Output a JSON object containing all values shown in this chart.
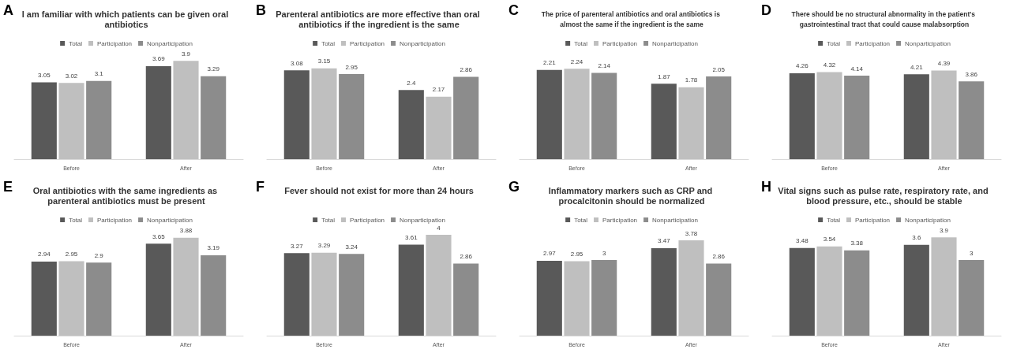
{
  "chart_data": [
    {
      "type": "bar",
      "annotations": [
        "A"
      ],
      "title": "I am familiar with which patients can be given oral antibiotics",
      "categories": [
        "Before",
        "After"
      ],
      "series": [
        {
          "name": "Total",
          "color": "#595959",
          "values": [
            3.05,
            3.69
          ]
        },
        {
          "name": "Participation",
          "color": "#bfbfbf",
          "values": [
            3.02,
            3.9
          ]
        },
        {
          "name": "Nonparticipation",
          "color": "#8c8c8c",
          "values": [
            3.1,
            3.29
          ]
        }
      ],
      "data_labels": true,
      "legend": "top",
      "grid": false
    },
    {
      "type": "bar",
      "annotations": [
        "B"
      ],
      "title": "Parenteral antibiotics are more effective than oral antibiotics if the ingredient is the same",
      "categories": [
        "Before",
        "After"
      ],
      "series": [
        {
          "name": "Total",
          "color": "#595959",
          "values": [
            3.08,
            2.4
          ]
        },
        {
          "name": "Participation",
          "color": "#bfbfbf",
          "values": [
            3.15,
            2.17
          ]
        },
        {
          "name": "Nonparticipation",
          "color": "#8c8c8c",
          "values": [
            2.95,
            2.86
          ]
        }
      ],
      "data_labels": true,
      "legend": "top",
      "grid": false
    },
    {
      "type": "bar",
      "annotations": [
        "C"
      ],
      "title": "The price of parenteral antibiotics and oral antibiotics is almost the same if the ingredient is the same",
      "categories": [
        "Before",
        "After"
      ],
      "series": [
        {
          "name": "Total",
          "color": "#595959",
          "values": [
            2.21,
            1.87
          ]
        },
        {
          "name": "Participation",
          "color": "#bfbfbf",
          "values": [
            2.24,
            1.78
          ]
        },
        {
          "name": "Nonparticipation",
          "color": "#8c8c8c",
          "values": [
            2.14,
            2.05
          ]
        }
      ],
      "data_labels": true,
      "legend": "top",
      "grid": false
    },
    {
      "type": "bar",
      "annotations": [
        "D"
      ],
      "title": "There should be no structural abnormality in the patient's gastrointestinal tract that could cause malabsorption",
      "categories": [
        "Before",
        "After"
      ],
      "series": [
        {
          "name": "Total",
          "color": "#595959",
          "values": [
            4.26,
            4.21
          ]
        },
        {
          "name": "Participation",
          "color": "#bfbfbf",
          "values": [
            4.32,
            4.39
          ]
        },
        {
          "name": "Nonparticipation",
          "color": "#8c8c8c",
          "values": [
            4.14,
            3.86
          ]
        }
      ],
      "data_labels": true,
      "legend": "top",
      "grid": false
    },
    {
      "type": "bar",
      "annotations": [
        "E"
      ],
      "title": "Oral antibiotics with the same ingredients as parenteral antibiotics must be present",
      "categories": [
        "Before",
        "After"
      ],
      "series": [
        {
          "name": "Total",
          "color": "#595959",
          "values": [
            2.94,
            3.65
          ]
        },
        {
          "name": "Participation",
          "color": "#bfbfbf",
          "values": [
            2.95,
            3.88
          ]
        },
        {
          "name": "Nonparticipation",
          "color": "#8c8c8c",
          "values": [
            2.9,
            3.19
          ]
        }
      ],
      "data_labels": true,
      "legend": "top",
      "grid": false
    },
    {
      "type": "bar",
      "annotations": [
        "F"
      ],
      "title": "Fever should not exist for more than 24 hours",
      "categories": [
        "Before",
        "After"
      ],
      "series": [
        {
          "name": "Total",
          "color": "#595959",
          "values": [
            3.27,
            3.61
          ]
        },
        {
          "name": "Participation",
          "color": "#bfbfbf",
          "values": [
            3.29,
            4
          ]
        },
        {
          "name": "Nonparticipation",
          "color": "#8c8c8c",
          "values": [
            3.24,
            2.86
          ]
        }
      ],
      "data_labels": true,
      "legend": "top",
      "grid": false
    },
    {
      "type": "bar",
      "annotations": [
        "G"
      ],
      "title": "Inflammatory markers such as CRP and procalcitonin should be normalized",
      "categories": [
        "Before",
        "After"
      ],
      "series": [
        {
          "name": "Total",
          "color": "#595959",
          "values": [
            2.97,
            3.47
          ]
        },
        {
          "name": "Participation",
          "color": "#bfbfbf",
          "values": [
            2.95,
            3.78
          ]
        },
        {
          "name": "Nonparticipation",
          "color": "#8c8c8c",
          "values": [
            3,
            2.86
          ]
        }
      ],
      "data_labels": true,
      "legend": "top",
      "grid": false
    },
    {
      "type": "bar",
      "annotations": [
        "H"
      ],
      "title": "Vital signs such as pulse rate, respiratory rate, and blood pressure, etc., should be stable",
      "categories": [
        "Before",
        "After"
      ],
      "series": [
        {
          "name": "Total",
          "color": "#595959",
          "values": [
            3.48,
            3.6
          ]
        },
        {
          "name": "Participation",
          "color": "#bfbfbf",
          "values": [
            3.54,
            3.9
          ]
        },
        {
          "name": "Nonparticipation",
          "color": "#8c8c8c",
          "values": [
            3.38,
            3
          ]
        }
      ],
      "data_labels": true,
      "legend": "top",
      "grid": false
    }
  ]
}
